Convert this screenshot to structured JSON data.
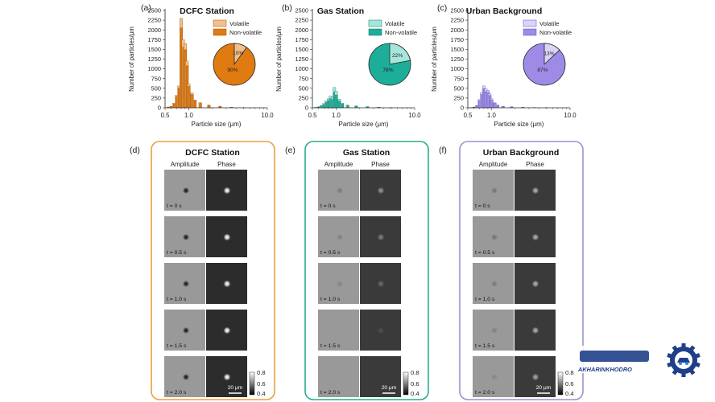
{
  "figure": {
    "colors": {
      "dcfc": {
        "nonvol": "#e07b12",
        "vol": "#f2c08c",
        "edge": "#9a5206",
        "frame": "#e8a040"
      },
      "gas": {
        "nonvol": "#1cae98",
        "vol": "#a6e6da",
        "edge": "#0f7566",
        "frame": "#2aab90"
      },
      "urban": {
        "nonvol": "#9e8be6",
        "vol": "#dcd3f7",
        "edge": "#5e4bb4",
        "frame": "#9e92cc"
      }
    },
    "top_panels": [
      {
        "letter": "(a)",
        "title": "DCFC Station",
        "key": "dcfc",
        "ylabel": "Number of particles/μm",
        "xlabel": "Particle size (μm)",
        "yticks": [
          "0",
          "250",
          "500",
          "750",
          "1000",
          "1250",
          "1500",
          "1750",
          "2000",
          "2250",
          "2500"
        ],
        "xticks": [
          "0.5",
          "1.0",
          "10.0"
        ],
        "legend": [
          "Volatile",
          "Non-volatile"
        ],
        "pie": {
          "volatile_pct": 10,
          "nonvolatile_pct": 90,
          "volatile_label": "10%",
          "nonvolatile_label": "90%"
        }
      },
      {
        "letter": "(b)",
        "title": "Gas Station",
        "key": "gas",
        "ylabel": "Number of particles/μm",
        "xlabel": "Particle size (μm)",
        "yticks": [
          "0",
          "250",
          "500",
          "750",
          "1000",
          "1250",
          "1500",
          "1750",
          "2000",
          "2250",
          "2500"
        ],
        "xticks": [
          "0.5",
          "1.0",
          "10.0"
        ],
        "legend": [
          "Volatile",
          "Non-volatile"
        ],
        "pie": {
          "volatile_pct": 22,
          "nonvolatile_pct": 78,
          "volatile_label": "22%",
          "nonvolatile_label": "78%"
        }
      },
      {
        "letter": "(c)",
        "title": "Urban Background",
        "key": "urban",
        "ylabel": "Number of particles/μm",
        "xlabel": "Particle size (μm)",
        "yticks": [
          "0",
          "250",
          "500",
          "750",
          "1000",
          "1250",
          "1500",
          "1750",
          "2000",
          "2250",
          "2500"
        ],
        "xticks": [
          "0.5",
          "1.0",
          "10.0"
        ],
        "legend": [
          "Volatile",
          "Non-volatile"
        ],
        "pie": {
          "volatile_pct": 13,
          "nonvolatile_pct": 87,
          "volatile_label": "13%",
          "nonvolatile_label": "87%"
        }
      }
    ],
    "bottom_panels": [
      {
        "letter": "(d)",
        "title": "DCFC Station",
        "key": "dcfc",
        "col_amp": "Amplitude",
        "col_phase": "Phase",
        "times": [
          "t = 0 s",
          "t = 0.5 s",
          "t = 1.0 s",
          "t = 1.5 s",
          "t = 2.0 s"
        ],
        "scale": "20 μm",
        "cbar": [
          "0.8",
          "0.6",
          "0.4"
        ],
        "amp_dot": [
          1,
          1,
          1,
          1,
          1
        ],
        "phase_dot": [
          1,
          1,
          1,
          1,
          1
        ]
      },
      {
        "letter": "(e)",
        "title": "Gas Station",
        "key": "gas",
        "col_amp": "Amplitude",
        "col_phase": "Phase",
        "times": [
          "t = 0 s",
          "t = 0.5 s",
          "t = 1.0 s",
          "t = 1.5 s",
          "t = 2.0 s"
        ],
        "scale": "20 μm",
        "cbar": [
          "0.8",
          "0.6",
          "0.4"
        ],
        "amp_dot": [
          0.25,
          0.2,
          0.15,
          0,
          0
        ],
        "phase_dot": [
          0.45,
          0.35,
          0.25,
          0.1,
          0
        ]
      },
      {
        "letter": "(f)",
        "title": "Urban Background",
        "key": "urban",
        "col_amp": "Amplitude",
        "col_phase": "Phase",
        "times": [
          "t = 0 s",
          "t = 0.5 s",
          "t = 1.0 s",
          "t = 1.5 s",
          "t = 2.0 s"
        ],
        "scale": "20 μm",
        "cbar": [
          "0.8",
          "0.6",
          "0.4"
        ],
        "amp_dot": [
          0.3,
          0.3,
          0.25,
          0.2,
          0.15
        ],
        "phase_dot": [
          0.6,
          0.6,
          0.6,
          0.6,
          0.55
        ]
      }
    ],
    "watermark": {
      "brand": "AKHARINKHODRO",
      "icon": "gear-car-logo-icon"
    }
  },
  "chart_data": [
    {
      "type": "bar",
      "title": "DCFC Station",
      "xlabel": "Particle size (μm)",
      "ylabel": "Number of particles/μm",
      "ylim": [
        0,
        2500
      ],
      "xlim": [
        0.5,
        10.0
      ],
      "xscale": "log",
      "x": [
        0.55,
        0.6,
        0.65,
        0.7,
        0.75,
        0.8,
        0.85,
        0.9,
        0.95,
        1.0,
        1.1,
        1.2,
        1.4,
        1.8,
        2.5,
        3.5,
        5.0
      ],
      "series": [
        {
          "name": "Volatile",
          "values": [
            20,
            40,
            120,
            320,
            560,
            2300,
            1750,
            1650,
            1200,
            610,
            380,
            200,
            130,
            70,
            40,
            15,
            5
          ]
        },
        {
          "name": "Non-volatile",
          "values": [
            15,
            30,
            100,
            290,
            500,
            2050,
            1560,
            1490,
            1080,
            550,
            340,
            180,
            115,
            60,
            35,
            12,
            4
          ]
        }
      ]
    },
    {
      "type": "bar",
      "title": "Gas Station",
      "xlabel": "Particle size (μm)",
      "ylabel": "Number of particles/μm",
      "ylim": [
        0,
        2500
      ],
      "xlim": [
        0.5,
        10.0
      ],
      "xscale": "log",
      "x": [
        0.55,
        0.6,
        0.65,
        0.7,
        0.75,
        0.8,
        0.85,
        0.9,
        0.95,
        1.0,
        1.1,
        1.2,
        1.4,
        1.8,
        2.5,
        3.5,
        5.0
      ],
      "series": [
        {
          "name": "Volatile",
          "values": [
            10,
            25,
            60,
            110,
            180,
            230,
            300,
            270,
            520,
            420,
            220,
            120,
            70,
            50,
            30,
            15,
            5
          ]
        },
        {
          "name": "Non-volatile",
          "values": [
            8,
            20,
            45,
            85,
            140,
            180,
            235,
            210,
            400,
            330,
            170,
            95,
            55,
            40,
            24,
            12,
            4
          ]
        }
      ]
    },
    {
      "type": "bar",
      "title": "Urban Background",
      "xlabel": "Particle size (μm)",
      "ylabel": "Number of particles/μm",
      "ylim": [
        0,
        2500
      ],
      "xlim": [
        0.5,
        10.0
      ],
      "xscale": "log",
      "x": [
        0.55,
        0.6,
        0.65,
        0.7,
        0.75,
        0.8,
        0.85,
        0.9,
        0.95,
        1.0,
        1.1,
        1.2,
        1.4,
        1.8,
        2.5,
        3.5,
        5.0
      ],
      "series": [
        {
          "name": "Volatile",
          "values": [
            5,
            20,
            60,
            210,
            390,
            560,
            480,
            450,
            360,
            230,
            130,
            70,
            40,
            25,
            15,
            8,
            3
          ]
        },
        {
          "name": "Non-volatile",
          "values": [
            4,
            17,
            52,
            185,
            340,
            490,
            420,
            395,
            315,
            200,
            115,
            60,
            35,
            22,
            12,
            7,
            2
          ]
        }
      ]
    }
  ]
}
